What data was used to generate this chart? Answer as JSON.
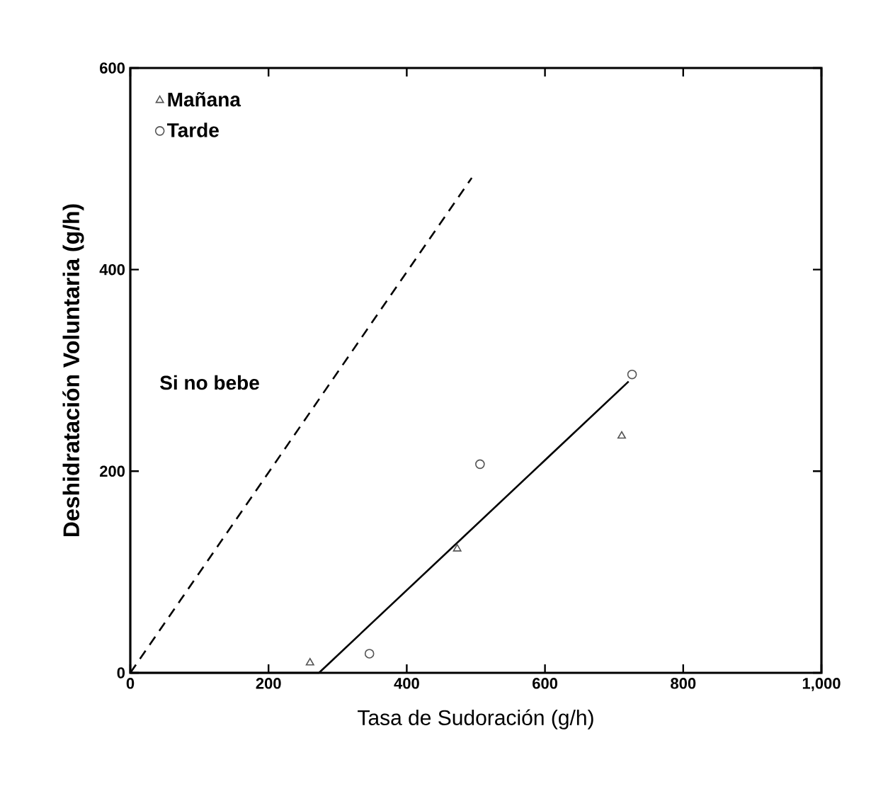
{
  "chart_data": {
    "type": "scatter",
    "xlabel": "Tasa de Sudoración (g/h)",
    "ylabel": "Deshidratación Voluntaria (g/h)",
    "xlim": [
      0,
      1000
    ],
    "ylim": [
      0,
      600
    ],
    "xticks": [
      0,
      200,
      400,
      600,
      800,
      {
        "value": 1000,
        "label": "1,000"
      }
    ],
    "yticks": [
      0,
      200,
      400,
      600
    ],
    "legend": "top left",
    "grid": false,
    "series": [
      {
        "name": "Mañana",
        "marker": "triangle",
        "color": "#555555",
        "x": [
          260,
          473,
          711
        ],
        "values": [
          10,
          123,
          235
        ]
      },
      {
        "name": "Tarde",
        "marker": "circle",
        "color": "#555555",
        "x": [
          346,
          506,
          726
        ],
        "values": [
          19,
          207,
          296
        ]
      },
      {
        "type": "line",
        "marker": "none",
        "line_style": "solid",
        "color": "#000000",
        "x": [
          0,
          273,
          721
        ],
        "values": [
          0,
          0,
          289
        ]
      },
      {
        "type": "line",
        "marker": "none",
        "line_style": "dashed",
        "color": "#000000",
        "x": [
          0,
          494
        ],
        "values": [
          0,
          491
        ]
      }
    ],
    "annotations": [
      "Si no bebe"
    ]
  }
}
